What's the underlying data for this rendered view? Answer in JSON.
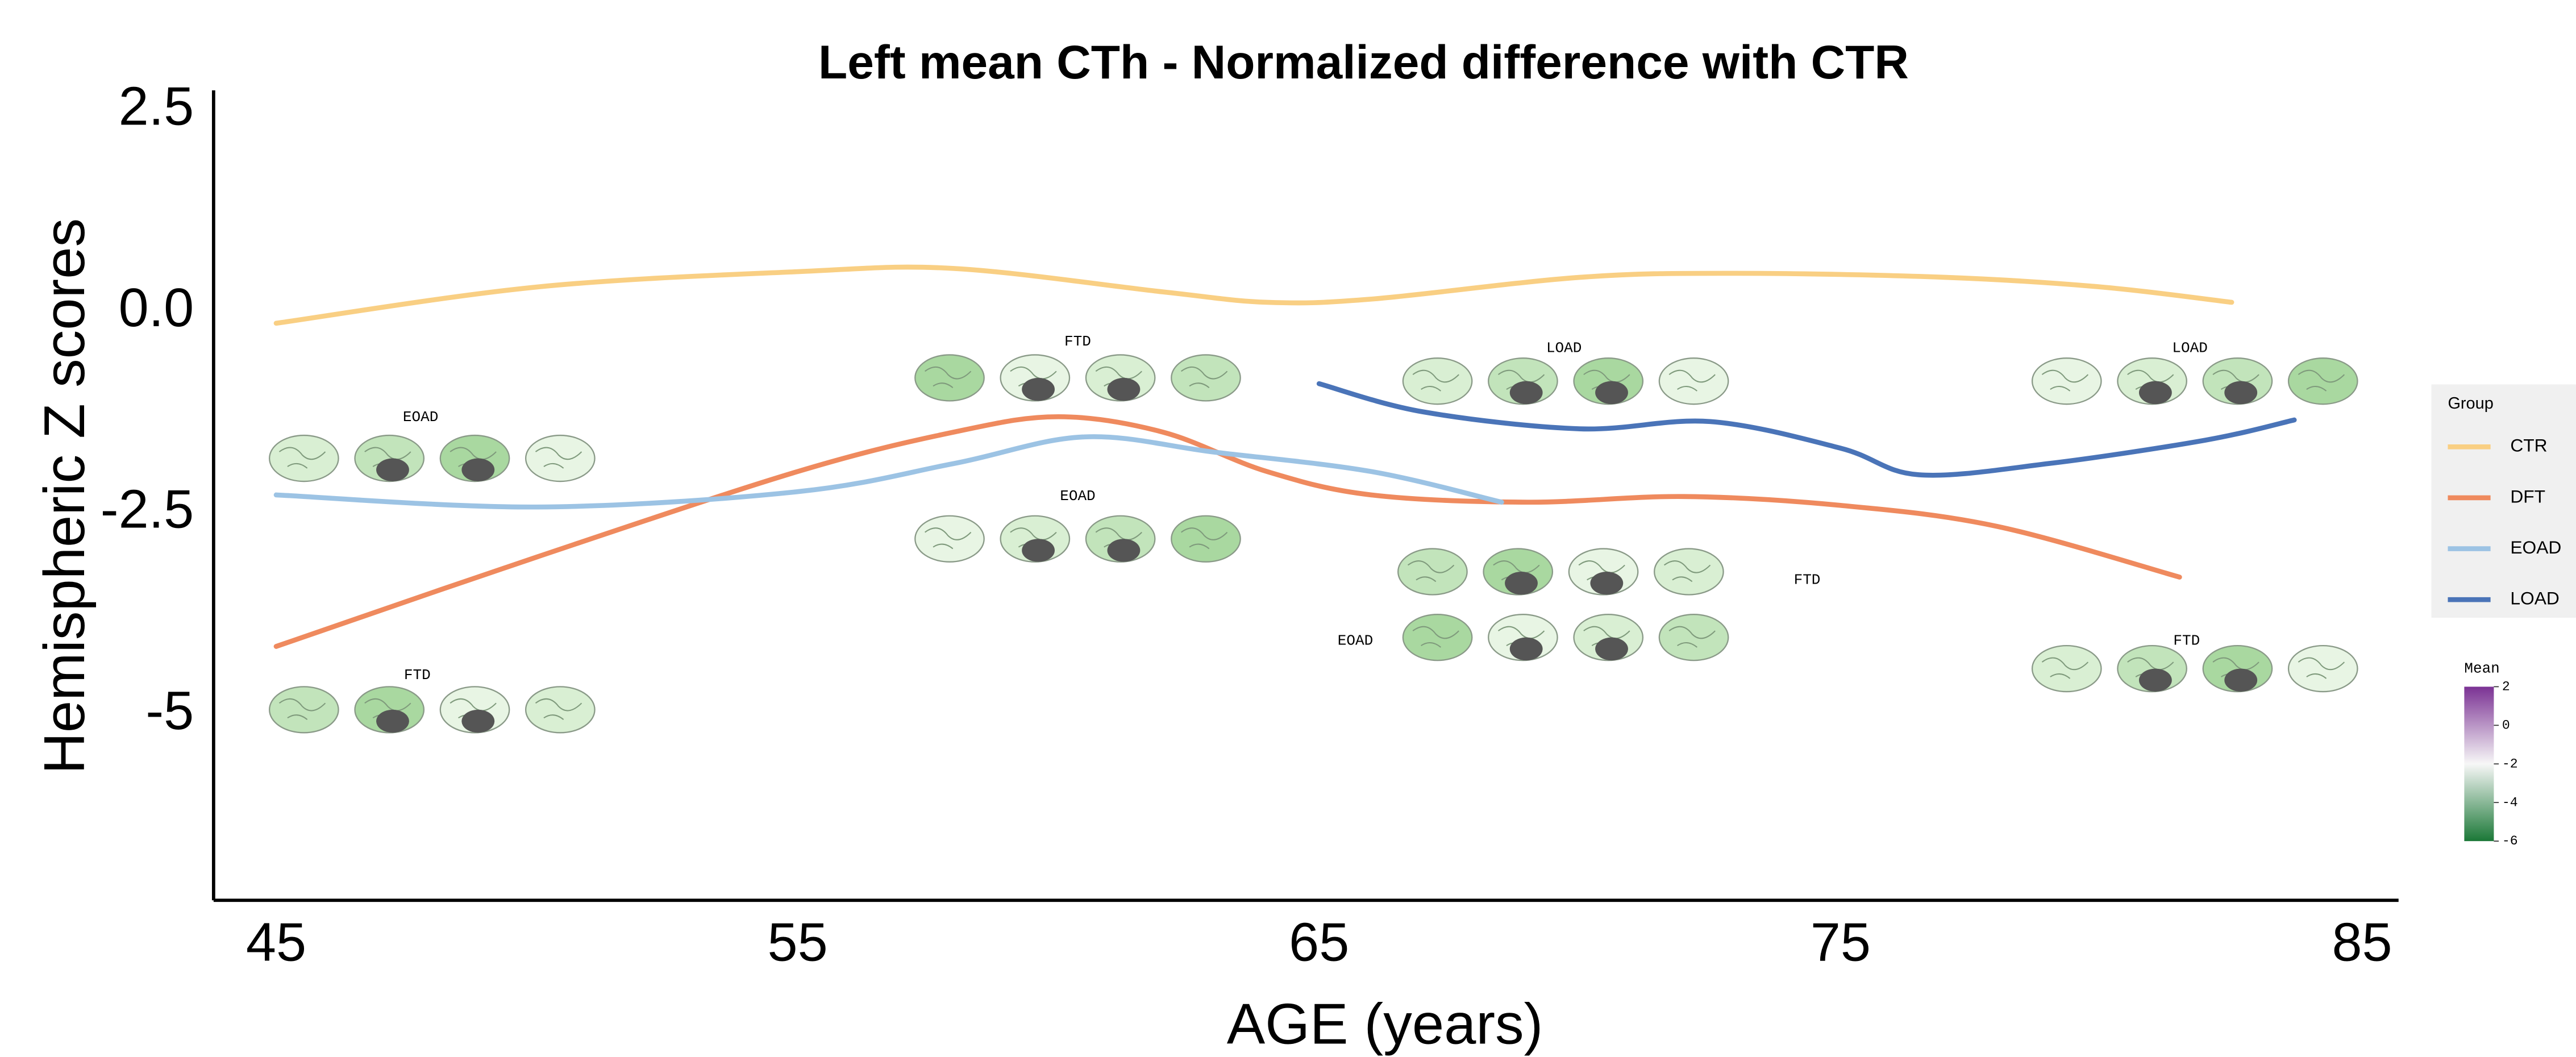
{
  "chart_data": {
    "type": "line",
    "title": "Left mean CTh - Normalized difference with CTR",
    "x_label": "AGE (years)",
    "y_label": "Hemispheric Z scores",
    "xlim": [
      43.8,
      85.7
    ],
    "ylim": [
      -7.3,
      2.75
    ],
    "xticks": [
      45,
      55,
      65,
      75,
      85
    ],
    "yticks": [
      2.5,
      {
        "value": 0,
        "label": "0.0"
      },
      -2.5,
      -5
    ],
    "grid": false,
    "legend_title": "Group",
    "legend_position": "right",
    "series": [
      {
        "name": "CTR",
        "color": "#f9cf83",
        "x": [
          45,
          50,
          55,
          58,
          62,
          64,
          66,
          70,
          73,
          77,
          80,
          82.5
        ],
        "values": [
          -0.14,
          0.31,
          0.5,
          0.54,
          0.25,
          0.12,
          0.16,
          0.43,
          0.48,
          0.43,
          0.31,
          0.12
        ]
      },
      {
        "name": "DFT",
        "color": "#ef8a5e",
        "x": [
          45,
          50,
          55,
          58,
          60,
          62,
          64,
          66,
          69,
          72,
          75,
          78,
          81.5
        ],
        "values": [
          -4.15,
          -3.04,
          -1.98,
          -1.49,
          -1.3,
          -1.49,
          -1.98,
          -2.27,
          -2.36,
          -2.29,
          -2.4,
          -2.66,
          -3.29
        ]
      },
      {
        "name": "EOAD",
        "color": "#9cc3e4",
        "x": [
          45,
          50,
          55,
          58,
          60.5,
          63,
          66,
          68.5
        ],
        "values": [
          -2.27,
          -2.42,
          -2.23,
          -1.88,
          -1.55,
          -1.74,
          -1.98,
          -2.36
        ]
      },
      {
        "name": "LOAD",
        "color": "#4a74b8",
        "x": [
          65,
          67,
          70,
          72.5,
          75,
          76.5,
          79,
          82,
          83.7
        ],
        "values": [
          -0.89,
          -1.24,
          -1.45,
          -1.36,
          -1.69,
          -2.02,
          -1.88,
          -1.59,
          -1.34
        ]
      }
    ],
    "annotations": [
      "EOAD",
      "FTD",
      "FTD",
      "EOAD",
      "LOAD",
      "FTD",
      "EOAD",
      "LOAD",
      "FTD"
    ],
    "colorbar": {
      "title": "Mean",
      "lim": [
        -6,
        2
      ],
      "ticks": [
        2,
        0,
        -2,
        -4,
        -6
      ],
      "colors": [
        "#7b3294",
        "#f7f7f7",
        "#1b7837"
      ]
    }
  }
}
